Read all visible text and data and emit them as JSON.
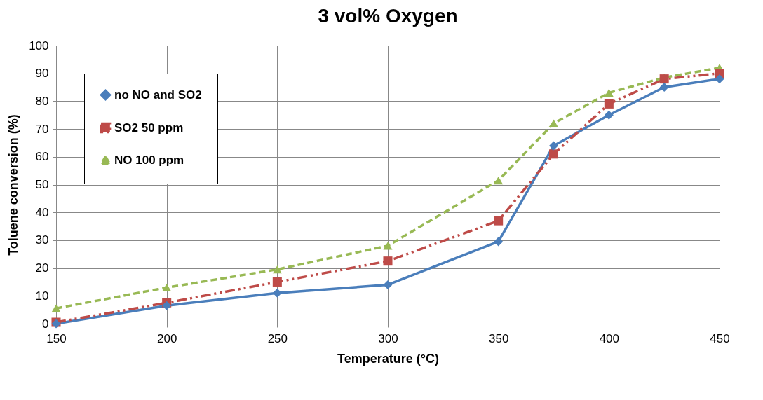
{
  "chart_data": {
    "type": "line",
    "title": "3 vol% Oxygen",
    "xlabel": "Temperature (°C)",
    "ylabel": "Toluene conversion (%)",
    "x": [
      150,
      200,
      250,
      300,
      350,
      375,
      400,
      425,
      450
    ],
    "xlim": [
      150,
      450
    ],
    "xticks": [
      150,
      200,
      250,
      300,
      350,
      400,
      450
    ],
    "ylim": [
      0,
      100
    ],
    "yticks": [
      0,
      10,
      20,
      30,
      40,
      50,
      60,
      70,
      80,
      90,
      100
    ],
    "grid": true,
    "legend": "top left",
    "series": [
      {
        "name": "no NO and SO2",
        "color": "#4a7ebb",
        "marker": "diamond",
        "line_style": "solid",
        "values": [
          0,
          6.5,
          11,
          14,
          29.5,
          64,
          75,
          85,
          88
        ]
      },
      {
        "name": "SO2 50 ppm",
        "color": "#be4b48",
        "marker": "square",
        "line_style": "dashed",
        "values": [
          0.5,
          7.5,
          15,
          22.5,
          37,
          61,
          79,
          88,
          90
        ]
      },
      {
        "name": "NO 100 ppm",
        "color": "#98b954",
        "marker": "triangle",
        "line_style": "dotted",
        "values": [
          5.5,
          13,
          19.5,
          28,
          51.5,
          72,
          83,
          88.5,
          92
        ]
      }
    ]
  }
}
